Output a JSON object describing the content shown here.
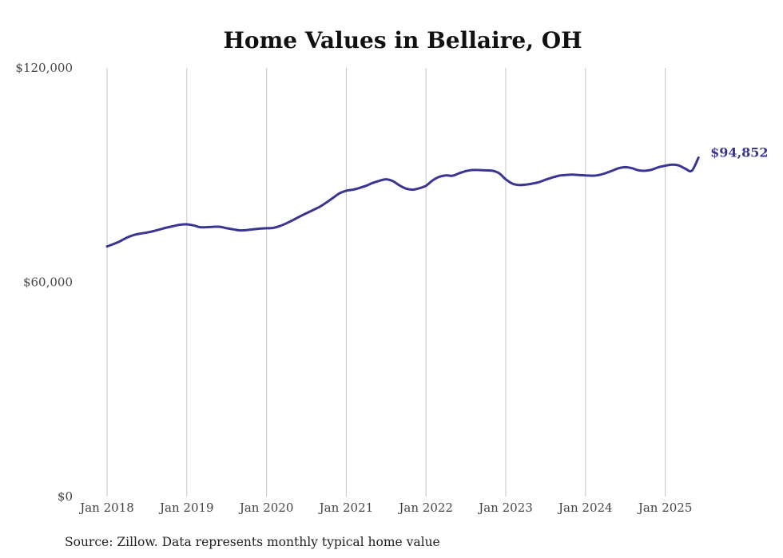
{
  "chart_data": {
    "type": "line",
    "title": "Home Values in Bellaire, OH",
    "xlabel": "",
    "ylabel": "",
    "ylim": [
      0,
      120000
    ],
    "y_ticks": [
      "$0",
      "$60,000",
      "$120,000"
    ],
    "x_ticks": [
      "Jan 2018",
      "Jan 2019",
      "Jan 2020",
      "Jan 2021",
      "Jan 2022",
      "Jan 2023",
      "Jan 2024",
      "Jan 2025"
    ],
    "grid": "vertical",
    "x_start": "2018-01",
    "x_end": "2025-06",
    "series": [
      {
        "color": "#3a3592",
        "values": [
          70000,
          70700,
          71500,
          72500,
          73200,
          73600,
          73900,
          74300,
          74800,
          75300,
          75700,
          76100,
          76200,
          75900,
          75400,
          75400,
          75500,
          75500,
          75100,
          74800,
          74500,
          74600,
          74800,
          75000,
          75100,
          75200,
          75700,
          76500,
          77400,
          78400,
          79300,
          80200,
          81100,
          82300,
          83600,
          84900,
          85600,
          85900,
          86400,
          87000,
          87800,
          88400,
          88800,
          88300,
          87100,
          86200,
          85900,
          86300,
          87000,
          88500,
          89500,
          89900,
          89800,
          90500,
          91100,
          91400,
          91400,
          91300,
          91200,
          90500,
          88800,
          87600,
          87200,
          87300,
          87600,
          88000,
          88700,
          89300,
          89800,
          90000,
          90100,
          90000,
          89900,
          89800,
          90000,
          90500,
          91200,
          91900,
          92200,
          91900,
          91300,
          91200,
          91500,
          92200,
          92600,
          92900,
          92700,
          91800,
          91200,
          94852
        ]
      }
    ],
    "end_label": "$94,852",
    "source": "Source: Zillow. Data represents monthly typical home value"
  }
}
